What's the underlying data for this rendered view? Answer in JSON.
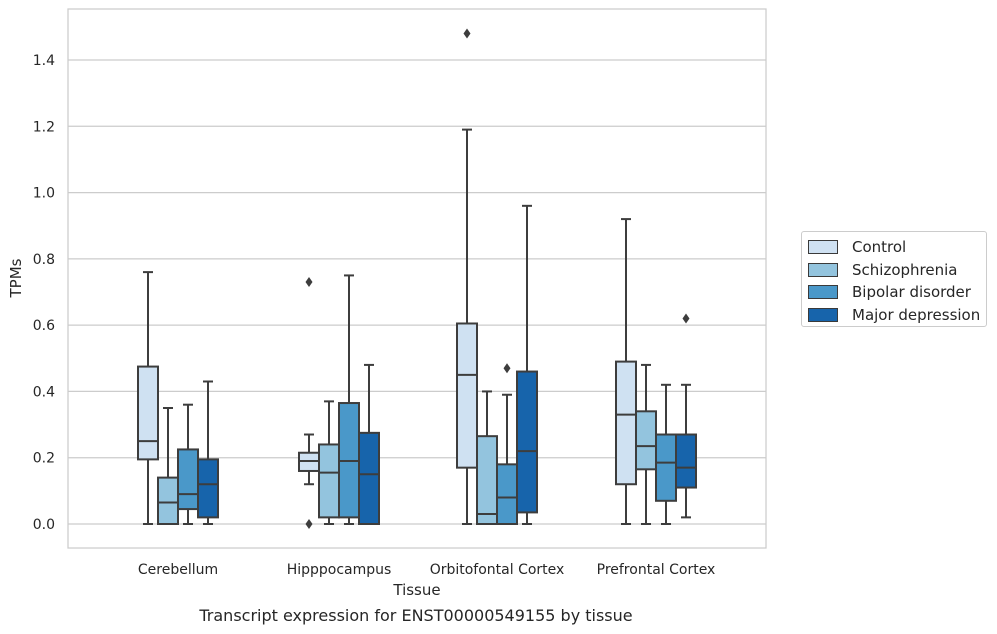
{
  "chart_data": {
    "type": "box",
    "caption": "Transcript expression for ENST00000549155 by tissue",
    "xlabel": "Tissue",
    "ylabel": "TPMs",
    "ylim": [
      -0.07,
      1.55
    ],
    "yticks": [
      "0.0",
      "0.2",
      "0.4",
      "0.6",
      "0.8",
      "1.0",
      "1.2",
      "1.4"
    ],
    "grid": "horizontal",
    "legend_position": "right",
    "categories": [
      "Cerebellum",
      "Hipppocampus",
      "Orbitofontal Cortex",
      "Prefrontal Cortex"
    ],
    "series": [
      {
        "name": "Control",
        "color": "#cfe1f2",
        "boxes": [
          {
            "whisker_low": 0.0,
            "q1": 0.195,
            "median": 0.25,
            "q3": 0.475,
            "whisker_high": 0.76,
            "outliers": []
          },
          {
            "whisker_low": 0.12,
            "q1": 0.16,
            "median": 0.19,
            "q3": 0.215,
            "whisker_high": 0.27,
            "outliers": [
              0.0,
              0.73
            ]
          },
          {
            "whisker_low": 0.0,
            "q1": 0.17,
            "median": 0.45,
            "q3": 0.605,
            "whisker_high": 1.19,
            "outliers": [
              1.48
            ]
          },
          {
            "whisker_low": 0.0,
            "q1": 0.12,
            "median": 0.33,
            "q3": 0.49,
            "whisker_high": 0.92,
            "outliers": []
          }
        ]
      },
      {
        "name": "Schizophrenia",
        "color": "#93c4de",
        "boxes": [
          {
            "whisker_low": 0.0,
            "q1": 0.0,
            "median": 0.065,
            "q3": 0.14,
            "whisker_high": 0.35,
            "outliers": []
          },
          {
            "whisker_low": 0.0,
            "q1": 0.02,
            "median": 0.155,
            "q3": 0.24,
            "whisker_high": 0.37,
            "outliers": []
          },
          {
            "whisker_low": 0.0,
            "q1": 0.0,
            "median": 0.03,
            "q3": 0.265,
            "whisker_high": 0.4,
            "outliers": []
          },
          {
            "whisker_low": 0.0,
            "q1": 0.165,
            "median": 0.235,
            "q3": 0.34,
            "whisker_high": 0.48,
            "outliers": []
          }
        ]
      },
      {
        "name": "Bipolar disorder",
        "color": "#4a98c9",
        "boxes": [
          {
            "whisker_low": 0.0,
            "q1": 0.045,
            "median": 0.09,
            "q3": 0.225,
            "whisker_high": 0.36,
            "outliers": []
          },
          {
            "whisker_low": 0.0,
            "q1": 0.02,
            "median": 0.19,
            "q3": 0.365,
            "whisker_high": 0.75,
            "outliers": []
          },
          {
            "whisker_low": 0.0,
            "q1": 0.0,
            "median": 0.08,
            "q3": 0.18,
            "whisker_high": 0.39,
            "outliers": [
              0.47
            ]
          },
          {
            "whisker_low": 0.0,
            "q1": 0.07,
            "median": 0.185,
            "q3": 0.27,
            "whisker_high": 0.42,
            "outliers": []
          }
        ]
      },
      {
        "name": "Major depression",
        "color": "#1764ab",
        "boxes": [
          {
            "whisker_low": 0.0,
            "q1": 0.02,
            "median": 0.12,
            "q3": 0.195,
            "whisker_high": 0.43,
            "outliers": []
          },
          {
            "whisker_low": 0.0,
            "q1": 0.0,
            "median": 0.15,
            "q3": 0.275,
            "whisker_high": 0.48,
            "outliers": []
          },
          {
            "whisker_low": 0.0,
            "q1": 0.035,
            "median": 0.22,
            "q3": 0.46,
            "whisker_high": 0.96,
            "outliers": []
          },
          {
            "whisker_low": 0.02,
            "q1": 0.11,
            "median": 0.17,
            "q3": 0.27,
            "whisker_high": 0.42,
            "outliers": [
              0.62
            ]
          }
        ]
      }
    ]
  }
}
